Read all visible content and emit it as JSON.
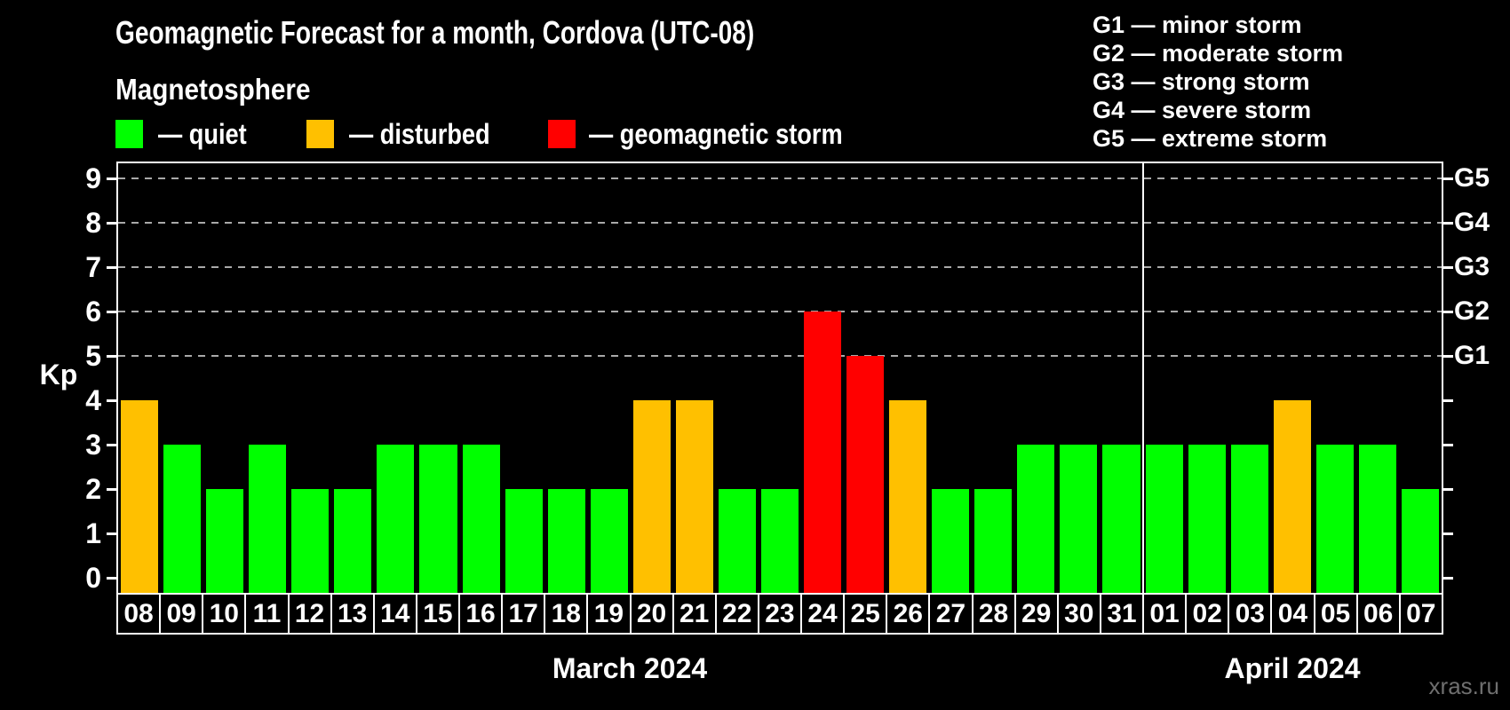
{
  "header": {
    "title": "Geomagnetic Forecast for a month, Cordova (UTC-08)",
    "subtitle": "Magnetosphere"
  },
  "legend": {
    "items": [
      {
        "key": "quiet",
        "label": "— quiet"
      },
      {
        "key": "disturbed",
        "label": "— disturbed"
      },
      {
        "key": "storm",
        "label": "— geomagnetic storm"
      }
    ]
  },
  "storm_scale_legend": {
    "lines": [
      "G1 — minor storm",
      "G2 — moderate storm",
      "G3 — strong storm",
      "G4 — severe storm",
      "G5 — extreme storm"
    ]
  },
  "colors": {
    "background": "#000000",
    "quiet": "#00ff00",
    "disturbed": "#ffc000",
    "storm": "#ff0000",
    "axis": "#ffffff",
    "grid": "#a9a9a9",
    "watermark": "#6f6f6f"
  },
  "watermark": "xras.ru",
  "chart_data": {
    "type": "bar",
    "title": "Geomagnetic Forecast for a month, Cordova (UTC-08)",
    "ylabel": "Kp",
    "ylim": [
      0,
      9
    ],
    "y_ticks": [
      0,
      1,
      2,
      3,
      4,
      5,
      6,
      7,
      8,
      9
    ],
    "grid": "dashed horizontal lines at Kp 5,6,7,8,9 only",
    "legend_position": "top-left",
    "right_axis_labels": [
      {
        "label": "G1",
        "kp": 5
      },
      {
        "label": "G2",
        "kp": 6
      },
      {
        "label": "G3",
        "kp": 7
      },
      {
        "label": "G4",
        "kp": 8
      },
      {
        "label": "G5",
        "kp": 9
      }
    ],
    "categories": [
      "08",
      "09",
      "10",
      "11",
      "12",
      "13",
      "14",
      "15",
      "16",
      "17",
      "18",
      "19",
      "20",
      "21",
      "22",
      "23",
      "24",
      "25",
      "26",
      "27",
      "28",
      "29",
      "30",
      "31",
      "01",
      "02",
      "03",
      "04",
      "05",
      "06",
      "07"
    ],
    "values": [
      4,
      3,
      2,
      3,
      2,
      2,
      3,
      3,
      3,
      2,
      2,
      2,
      4,
      4,
      2,
      2,
      6,
      5,
      4,
      2,
      2,
      3,
      3,
      3,
      3,
      3,
      3,
      4,
      3,
      3,
      2
    ],
    "statuses": [
      "disturbed",
      "quiet",
      "quiet",
      "quiet",
      "quiet",
      "quiet",
      "quiet",
      "quiet",
      "quiet",
      "quiet",
      "quiet",
      "quiet",
      "disturbed",
      "disturbed",
      "quiet",
      "quiet",
      "storm",
      "storm",
      "disturbed",
      "quiet",
      "quiet",
      "quiet",
      "quiet",
      "quiet",
      "quiet",
      "quiet",
      "quiet",
      "disturbed",
      "quiet",
      "quiet",
      "quiet"
    ],
    "months": [
      {
        "label": "March 2024",
        "days": 24
      },
      {
        "label": "April 2024",
        "days": 7
      }
    ]
  }
}
